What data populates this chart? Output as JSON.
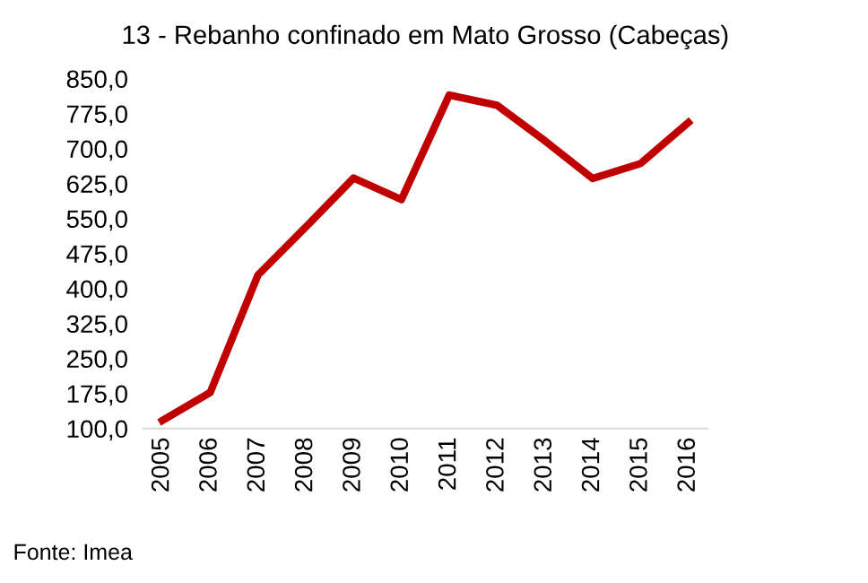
{
  "chart_data": {
    "type": "line",
    "title": "13 - Rebanho confinado em Mato Grosso (Cabeças)",
    "categories": [
      "2005",
      "2006",
      "2007",
      "2008",
      "2009",
      "2010",
      "2011",
      "2012",
      "2013",
      "2014",
      "2015",
      "2016"
    ],
    "series": [
      {
        "color": "#c00000",
        "values": [
          117,
          177,
          429,
          532,
          637,
          591,
          815,
          793,
          717,
          636,
          668,
          756
        ]
      }
    ],
    "ylim": [
      100,
      850
    ],
    "yticks": [
      {
        "value": 100,
        "label": "100,0"
      },
      {
        "value": 175,
        "label": "175,0"
      },
      {
        "value": 250,
        "label": "250,0"
      },
      {
        "value": 325,
        "label": "325,0"
      },
      {
        "value": 400,
        "label": "400,0"
      },
      {
        "value": 475,
        "label": "475,0"
      },
      {
        "value": 550,
        "label": "550,0"
      },
      {
        "value": 625,
        "label": "625,0"
      },
      {
        "value": 700,
        "label": "700,0"
      },
      {
        "value": 775,
        "label": "775,0"
      },
      {
        "value": 850,
        "label": "850,0"
      }
    ],
    "grid": false,
    "marker": "none",
    "line_style": "solid",
    "annotations": [
      "Fonte: Imea"
    ]
  }
}
